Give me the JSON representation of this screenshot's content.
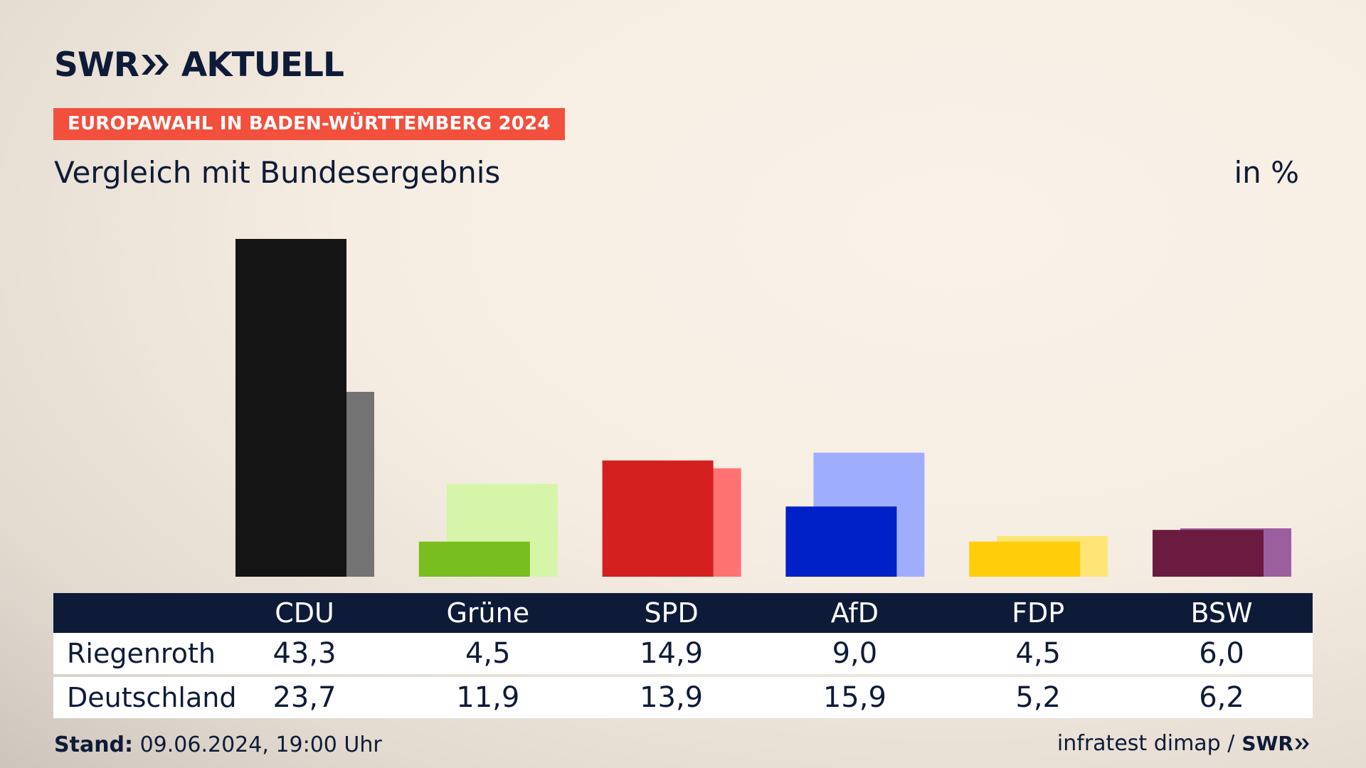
{
  "header": {
    "logo_left": "SWR",
    "logo_right": "AKTUELL",
    "badge": "EUROPAWAHL IN BADEN-WÜRTTEMBERG 2024",
    "subtitle": "Vergleich mit Bundesergebnis",
    "unit": "in %"
  },
  "table": {
    "rows": [
      {
        "label": "Riegenroth",
        "values": [
          "43,3",
          "4,5",
          "14,9",
          "9,0",
          "4,5",
          "6,0"
        ]
      },
      {
        "label": "Deutschland",
        "values": [
          "23,7",
          "11,9",
          "13,9",
          "15,9",
          "5,2",
          "6,2"
        ]
      }
    ]
  },
  "footer": {
    "stand_label": "Stand:",
    "stand_value": " 09.06.2024, 19:00 Uhr",
    "source": "infratest dimap /",
    "brand": "SWR"
  },
  "chart_data": {
    "type": "bar",
    "categories": [
      "CDU",
      "Grüne",
      "SPD",
      "AfD",
      "FDP",
      "BSW"
    ],
    "series": [
      {
        "name": "Riegenroth",
        "values": [
          43.3,
          4.5,
          14.9,
          9.0,
          4.5,
          6.0
        ],
        "colors": [
          "#141414",
          "#78be1e",
          "#d41f1f",
          "#0020c8",
          "#ffcd0a",
          "#6b1a40"
        ]
      },
      {
        "name": "Deutschland",
        "values": [
          23.7,
          11.9,
          13.9,
          15.9,
          5.2,
          6.2
        ],
        "colors": [
          "#737373",
          "#d6f5a8",
          "#ff7272",
          "#9fadff",
          "#ffe476",
          "#9b5f9f"
        ]
      }
    ],
    "ylim": [
      0,
      43.3
    ],
    "title": "Vergleich mit Bundesergebnis",
    "ylabel": "in %"
  }
}
